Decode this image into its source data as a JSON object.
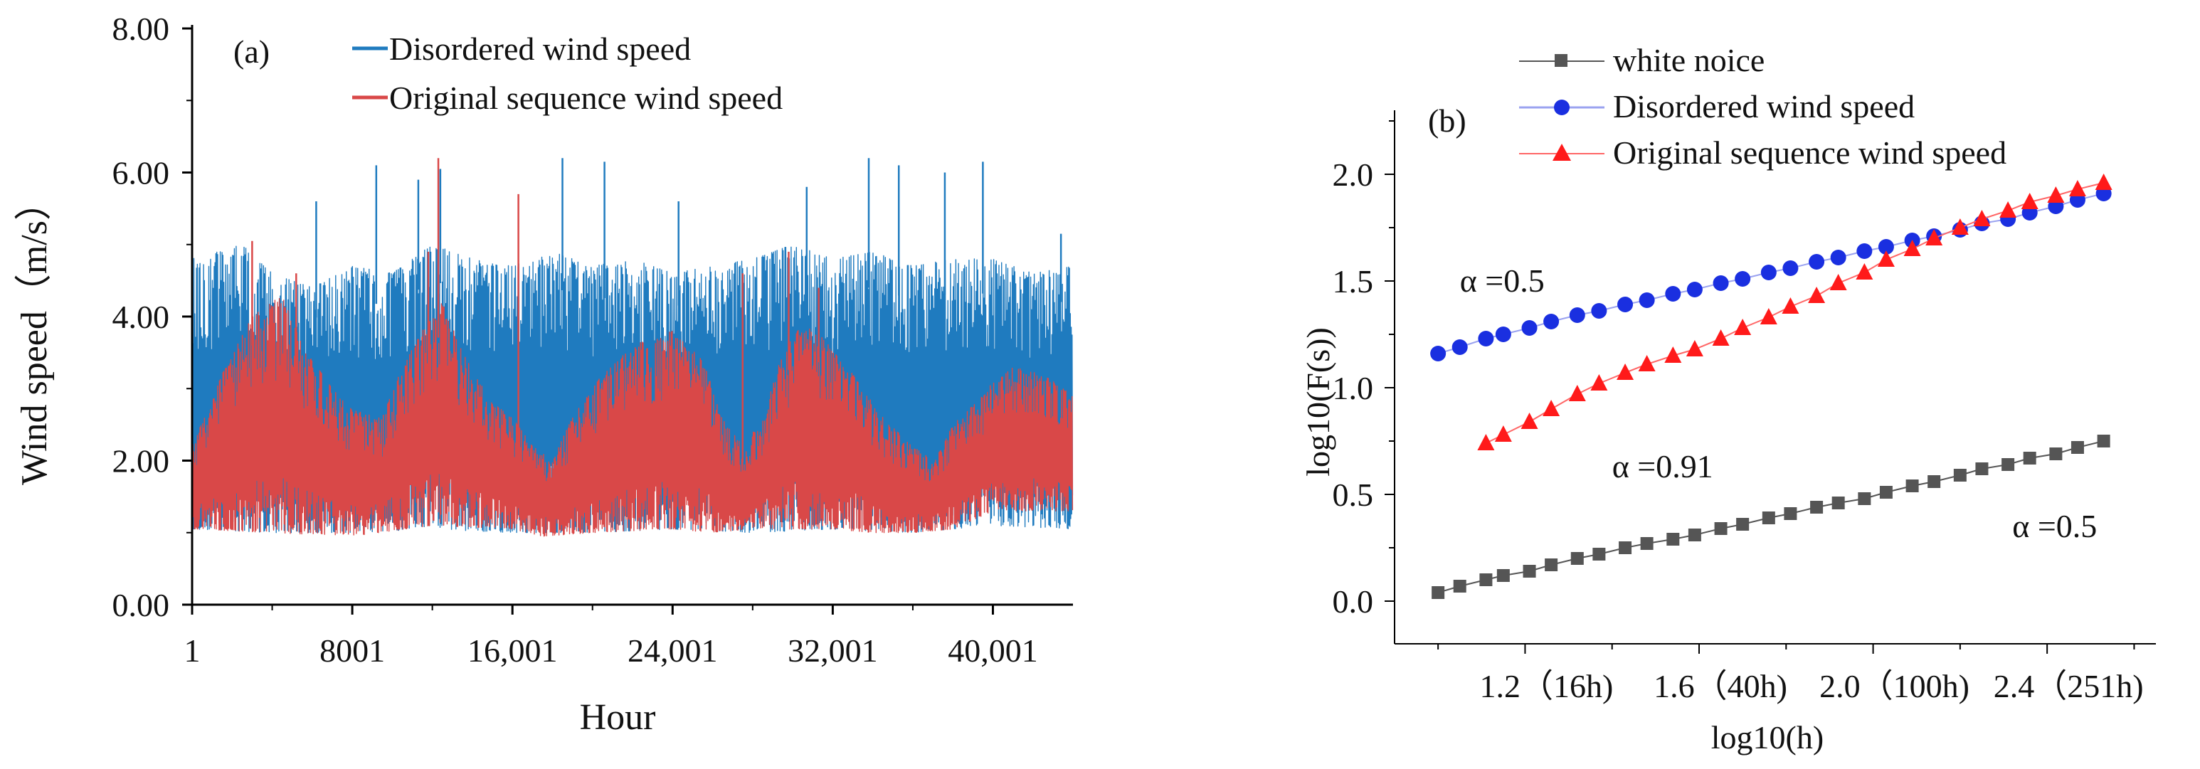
{
  "chart_data": [
    {
      "panel": "(a)",
      "type": "line",
      "xlabel": "Hour",
      "ylabel": "Wind speed（m/s）",
      "xlim": [
        1,
        44000
      ],
      "ylim": [
        0,
        8
      ],
      "x_ticks": [
        1,
        8001,
        16001,
        24001,
        32001,
        40001
      ],
      "x_tick_labels": [
        "1",
        "8001",
        "16,001",
        "24,001",
        "32,001",
        "40,001"
      ],
      "y_ticks": [
        0,
        2,
        4,
        6,
        8
      ],
      "y_tick_labels": [
        "0.00",
        "2.00",
        "4.00",
        "6.00",
        "8.00"
      ],
      "legend_position": "top-center",
      "series": [
        {
          "name": "Disordered wind speed",
          "color": "#1f7bbf",
          "description_of_values": "noisy series between about 0.9 and 6.2 m/s over the full range",
          "lower_envelope": [
            [
              1,
              1.05
            ],
            [
              4000,
              1.0
            ],
            [
              8001,
              1.0
            ],
            [
              12000,
              1.05
            ],
            [
              16001,
              1.0
            ],
            [
              20000,
              1.0
            ],
            [
              24001,
              1.05
            ],
            [
              28000,
              1.0
            ],
            [
              32001,
              1.05
            ],
            [
              36000,
              1.0
            ],
            [
              40001,
              1.1
            ],
            [
              44000,
              1.05
            ]
          ],
          "upper_envelope": [
            [
              1,
              4.8
            ],
            [
              2500,
              5.0
            ],
            [
              4000,
              4.6
            ],
            [
              6000,
              4.4
            ],
            [
              8001,
              4.7
            ],
            [
              10000,
              4.6
            ],
            [
              12000,
              5.0
            ],
            [
              14000,
              4.8
            ],
            [
              16001,
              4.7
            ],
            [
              18000,
              4.9
            ],
            [
              20000,
              4.7
            ],
            [
              22000,
              4.8
            ],
            [
              24001,
              4.6
            ],
            [
              26000,
              4.7
            ],
            [
              28000,
              4.8
            ],
            [
              30000,
              5.0
            ],
            [
              32001,
              4.8
            ],
            [
              34000,
              4.9
            ],
            [
              36000,
              4.7
            ],
            [
              38000,
              4.8
            ],
            [
              40001,
              4.8
            ],
            [
              42000,
              4.6
            ],
            [
              44000,
              4.7
            ]
          ],
          "peaks": [
            [
              6200,
              5.6
            ],
            [
              9200,
              6.1
            ],
            [
              11300,
              5.9
            ],
            [
              12400,
              6.05
            ],
            [
              18500,
              6.2
            ],
            [
              20600,
              6.15
            ],
            [
              24300,
              5.6
            ],
            [
              30700,
              5.8
            ],
            [
              33800,
              6.2
            ],
            [
              35300,
              6.1
            ],
            [
              37600,
              6.0
            ],
            [
              39500,
              6.15
            ],
            [
              43400,
              5.15
            ]
          ]
        },
        {
          "name": "Original sequence wind speed",
          "color": "#d94848",
          "description_of_values": "series with seasonal cycle, upper envelope rising to ~4.2 and lower envelope ~1.0",
          "lower_envelope": [
            [
              1,
              1.05
            ],
            [
              4000,
              1.0
            ],
            [
              8001,
              0.95
            ],
            [
              12000,
              1.1
            ],
            [
              16001,
              1.05
            ],
            [
              17500,
              0.95
            ],
            [
              20000,
              1.0
            ],
            [
              24001,
              1.05
            ],
            [
              26000,
              1.0
            ],
            [
              28000,
              1.05
            ],
            [
              32001,
              1.05
            ],
            [
              34000,
              1.0
            ],
            [
              36000,
              1.0
            ],
            [
              38000,
              1.05
            ],
            [
              40001,
              1.3
            ],
            [
              44000,
              1.3
            ]
          ],
          "upper_envelope": [
            [
              1,
              2.2
            ],
            [
              1500,
              3.2
            ],
            [
              3000,
              4.0
            ],
            [
              4500,
              4.3
            ],
            [
              5500,
              3.6
            ],
            [
              7000,
              3.0
            ],
            [
              8001,
              2.7
            ],
            [
              9500,
              2.6
            ],
            [
              10500,
              3.3
            ],
            [
              11500,
              3.8
            ],
            [
              12500,
              4.2
            ],
            [
              13500,
              3.5
            ],
            [
              15000,
              2.8
            ],
            [
              16001,
              2.6
            ],
            [
              17000,
              2.2
            ],
            [
              18000,
              2.0
            ],
            [
              19000,
              2.6
            ],
            [
              20500,
              3.2
            ],
            [
              22000,
              3.6
            ],
            [
              24001,
              3.8
            ],
            [
              25500,
              3.4
            ],
            [
              26500,
              2.6
            ],
            [
              27500,
              2.2
            ],
            [
              28500,
              2.6
            ],
            [
              29500,
              3.5
            ],
            [
              30500,
              3.9
            ],
            [
              31500,
              3.7
            ],
            [
              33000,
              3.2
            ],
            [
              34500,
              2.6
            ],
            [
              36000,
              2.2
            ],
            [
              37000,
              2.0
            ],
            [
              38000,
              2.5
            ],
            [
              39500,
              2.9
            ],
            [
              40001,
              3.1
            ],
            [
              41000,
              3.3
            ],
            [
              42500,
              3.2
            ],
            [
              44000,
              2.9
            ]
          ],
          "peaks": [
            [
              3000,
              5.05
            ],
            [
              5200,
              4.6
            ],
            [
              11800,
              4.9
            ],
            [
              12300,
              6.2
            ],
            [
              16300,
              5.7
            ],
            [
              27500,
              4.6
            ],
            [
              29800,
              4.9
            ],
            [
              31300,
              4.4
            ]
          ]
        }
      ]
    },
    {
      "panel": "(b)",
      "type": "scatter",
      "xlabel": "log10(h)",
      "ylabel": "log10(F(s))",
      "xlim": [
        0.9,
        2.65
      ],
      "ylim": [
        -0.2,
        2.3
      ],
      "x_ticks": [
        1.2,
        1.6,
        2.0,
        2.4
      ],
      "x_tick_labels": [
        "1.2（16h)",
        "1.6（40h)",
        "2.0（100h)",
        "2.4（251h)"
      ],
      "y_ticks": [
        0.0,
        0.5,
        1.0,
        1.5,
        2.0
      ],
      "y_tick_labels": [
        "0.0",
        "0.5",
        "1.0",
        "1.5",
        "2.0"
      ],
      "legend_position": "top-center",
      "series": [
        {
          "name": "white noice",
          "color": "#555555",
          "marker": "square",
          "x": [
            1.0,
            1.05,
            1.11,
            1.15,
            1.21,
            1.26,
            1.32,
            1.37,
            1.43,
            1.48,
            1.54,
            1.59,
            1.65,
            1.7,
            1.76,
            1.81,
            1.87,
            1.92,
            1.98,
            2.03,
            2.09,
            2.14,
            2.2,
            2.25,
            2.31,
            2.36,
            2.42,
            2.47,
            2.53
          ],
          "y": [
            0.04,
            0.07,
            0.1,
            0.12,
            0.14,
            0.17,
            0.2,
            0.22,
            0.25,
            0.27,
            0.29,
            0.31,
            0.34,
            0.36,
            0.39,
            0.41,
            0.44,
            0.46,
            0.48,
            0.51,
            0.54,
            0.56,
            0.59,
            0.62,
            0.64,
            0.67,
            0.69,
            0.72,
            0.75
          ]
        },
        {
          "name": "Disordered wind speed",
          "color": "#1a2fe0",
          "marker": "circle",
          "x": [
            1.0,
            1.05,
            1.11,
            1.15,
            1.21,
            1.26,
            1.32,
            1.37,
            1.43,
            1.48,
            1.54,
            1.59,
            1.65,
            1.7,
            1.76,
            1.81,
            1.87,
            1.92,
            1.98,
            2.03,
            2.09,
            2.14,
            2.2,
            2.25,
            2.31,
            2.36,
            2.42,
            2.47,
            2.53
          ],
          "y": [
            1.16,
            1.19,
            1.23,
            1.25,
            1.28,
            1.31,
            1.34,
            1.36,
            1.39,
            1.41,
            1.44,
            1.46,
            1.49,
            1.51,
            1.54,
            1.56,
            1.59,
            1.61,
            1.64,
            1.66,
            1.69,
            1.71,
            1.74,
            1.77,
            1.79,
            1.82,
            1.85,
            1.88,
            1.91
          ]
        },
        {
          "name": "Original sequence wind speed",
          "color": "#ff1a1a",
          "marker": "triangle",
          "x": [
            1.11,
            1.15,
            1.21,
            1.26,
            1.32,
            1.37,
            1.43,
            1.48,
            1.54,
            1.59,
            1.65,
            1.7,
            1.76,
            1.81,
            1.87,
            1.92,
            1.98,
            2.03,
            2.09,
            2.14,
            2.2,
            2.25,
            2.31,
            2.36,
            2.42,
            2.47,
            2.53
          ],
          "y": [
            0.74,
            0.78,
            0.84,
            0.9,
            0.97,
            1.02,
            1.07,
            1.11,
            1.15,
            1.18,
            1.23,
            1.28,
            1.33,
            1.38,
            1.43,
            1.49,
            1.54,
            1.6,
            1.65,
            1.7,
            1.75,
            1.79,
            1.83,
            1.87,
            1.9,
            1.93,
            1.96
          ]
        }
      ],
      "annotations": [
        {
          "text": "α =0.5",
          "x": 1.05,
          "y": 1.45
        },
        {
          "text": "α =0.91",
          "x": 1.4,
          "y": 0.58
        },
        {
          "text": "α =0.5",
          "x": 2.32,
          "y": 0.3
        }
      ]
    }
  ]
}
